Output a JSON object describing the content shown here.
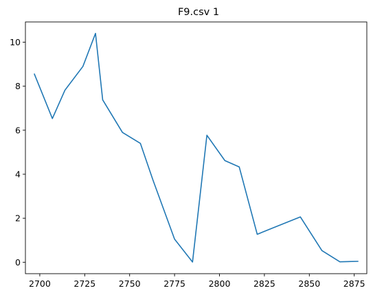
{
  "chart_data": {
    "type": "line",
    "title": "F9.csv 1",
    "xlabel": "",
    "ylabel": "",
    "xlim": [
      2692,
      2882
    ],
    "ylim": [
      -0.52,
      10.92
    ],
    "x_ticks": [
      2700,
      2725,
      2750,
      2775,
      2800,
      2825,
      2850,
      2875
    ],
    "y_ticks": [
      0,
      2,
      4,
      6,
      8,
      10
    ],
    "grid": false,
    "legend": "none",
    "series": [
      {
        "color": "#1f77b4",
        "x": [
          2697,
          2707,
          2714,
          2724,
          2731,
          2735,
          2746,
          2756,
          2763,
          2775,
          2785,
          2793,
          2803,
          2811,
          2821,
          2830,
          2845,
          2857,
          2867,
          2877
        ],
        "y": [
          8.55,
          6.53,
          7.82,
          8.9,
          10.4,
          7.38,
          5.9,
          5.4,
          3.73,
          1.05,
          0.01,
          5.77,
          4.62,
          4.33,
          1.27,
          1.57,
          2.06,
          0.53,
          0.02,
          0.04
        ]
      }
    ]
  }
}
